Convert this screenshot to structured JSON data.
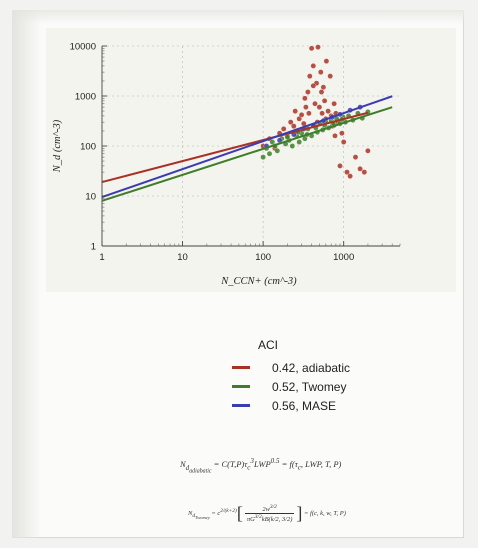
{
  "chart_data": {
    "type": "scatter",
    "title": "",
    "xlabel": "N_CCN+ (cm^-3)",
    "ylabel": "N_d (cm^-3)",
    "xlim": [
      1,
      5000
    ],
    "ylim": [
      1,
      10000
    ],
    "log_x": true,
    "log_y": true,
    "x_ticks": [
      1,
      10,
      100,
      1000
    ],
    "x_tick_labels": [
      "1",
      "10",
      "100",
      "1000"
    ],
    "y_ticks": [
      1,
      10,
      100,
      1000,
      10000
    ],
    "y_tick_labels": [
      "1",
      "10",
      "100",
      "1000",
      "10000"
    ],
    "grid": true,
    "legend_position": "below",
    "legend_title": "ACI",
    "series": [
      {
        "name": "0.42, adiabatic",
        "color": "#a93226",
        "points": [
          [
            100,
            100
          ],
          [
            120,
            140
          ],
          [
            140,
            90
          ],
          [
            160,
            180
          ],
          [
            180,
            220
          ],
          [
            200,
            160
          ],
          [
            220,
            300
          ],
          [
            240,
            250
          ],
          [
            260,
            200
          ],
          [
            280,
            350
          ],
          [
            300,
            420
          ],
          [
            320,
            280
          ],
          [
            340,
            600
          ],
          [
            360,
            1200
          ],
          [
            380,
            2500
          ],
          [
            400,
            9000
          ],
          [
            420,
            4000
          ],
          [
            440,
            700
          ],
          [
            460,
            1800
          ],
          [
            480,
            9500
          ],
          [
            500,
            600
          ],
          [
            520,
            3000
          ],
          [
            540,
            450
          ],
          [
            560,
            1500
          ],
          [
            580,
            800
          ],
          [
            600,
            350
          ],
          [
            640,
            500
          ],
          [
            680,
            2500
          ],
          [
            720,
            250
          ],
          [
            760,
            700
          ],
          [
            800,
            450
          ],
          [
            850,
            300
          ],
          [
            900,
            40
          ],
          [
            950,
            180
          ],
          [
            1000,
            120
          ],
          [
            1100,
            30
          ],
          [
            1200,
            25
          ],
          [
            1400,
            60
          ],
          [
            1600,
            35
          ],
          [
            1800,
            30
          ],
          [
            2000,
            80
          ],
          [
            250,
            500
          ],
          [
            330,
            900
          ],
          [
            370,
            450
          ],
          [
            420,
            1600
          ],
          [
            470,
            300
          ],
          [
            530,
            1200
          ],
          [
            610,
            5000
          ],
          [
            700,
            400
          ],
          [
            780,
            160
          ]
        ],
        "fit": {
          "slope": 0.42,
          "x_range": [
            1,
            2000
          ],
          "y_at_1": 19
        }
      },
      {
        "name": "0.52, Twomey",
        "color": "#3e7e2a",
        "points": [
          [
            100,
            60
          ],
          [
            110,
            90
          ],
          [
            120,
            70
          ],
          [
            130,
            120
          ],
          [
            150,
            80
          ],
          [
            170,
            140
          ],
          [
            190,
            110
          ],
          [
            210,
            130
          ],
          [
            230,
            100
          ],
          [
            260,
            160
          ],
          [
            280,
            120
          ],
          [
            300,
            180
          ],
          [
            330,
            140
          ],
          [
            360,
            220
          ],
          [
            400,
            160
          ],
          [
            430,
            260
          ],
          [
            470,
            190
          ],
          [
            510,
            280
          ],
          [
            550,
            210
          ],
          [
            600,
            300
          ],
          [
            650,
            230
          ],
          [
            700,
            320
          ],
          [
            760,
            260
          ],
          [
            820,
            350
          ],
          [
            900,
            280
          ],
          [
            980,
            380
          ],
          [
            1050,
            300
          ],
          [
            1150,
            400
          ],
          [
            1300,
            330
          ],
          [
            1500,
            450
          ],
          [
            1700,
            360
          ],
          [
            2000,
            480
          ],
          [
            140,
            100
          ],
          [
            200,
            150
          ],
          [
            270,
            190
          ],
          [
            350,
            170
          ],
          [
            450,
            230
          ],
          [
            580,
            260
          ],
          [
            740,
            290
          ],
          [
            950,
            340
          ]
        ],
        "fit": {
          "slope": 0.52,
          "x_range": [
            1,
            4000
          ],
          "y_at_1": 8
        }
      },
      {
        "name": "0.56, MASE",
        "color": "#3c3cb0",
        "points": [
          [
            110,
            100
          ],
          [
            160,
            130
          ],
          [
            240,
            170
          ],
          [
            320,
            220
          ],
          [
            420,
            260
          ],
          [
            560,
            320
          ],
          [
            720,
            380
          ],
          [
            900,
            430
          ],
          [
            1200,
            520
          ],
          [
            1600,
            600
          ]
        ],
        "fit": {
          "slope": 0.56,
          "x_range": [
            1,
            4000
          ],
          "y_at_1": 9.5
        }
      }
    ]
  },
  "equations": {
    "eq1": "N_d|adiabatic = C(T,P) τ_c^3 LWP^0.5 = f(τ_c, LWP, T, P)",
    "eq1_left": "N",
    "eq1_left_sub": "d",
    "eq1_left_subsub": "adiabatic",
    "eq1_right": " = C(T,P)τ",
    "eq1_tau_sub": "c",
    "eq1_tau_sup": "3",
    "eq1_lwp": "LWP",
    "eq1_lwp_sup": "0.5",
    "eq1_tail": " = f(τ",
    "eq1_tail_sub": "c",
    "eq1_tail_end": ", LWP, T, P)",
    "eq2_left": "N",
    "eq2_left_sub": "d",
    "eq2_left_subsub": "Twomey",
    "eq2_mid": " = c",
    "eq2_mid_sup": "2/(k+2)",
    "eq2_num": "2w",
    "eq2_num_sup": "3/2",
    "eq2_den": "πG",
    "eq2_den_sup": "3/2",
    "eq2_den2": "kB(k/2, 3/2)",
    "eq2_tail": " = f(c, k, w, T, P)"
  }
}
